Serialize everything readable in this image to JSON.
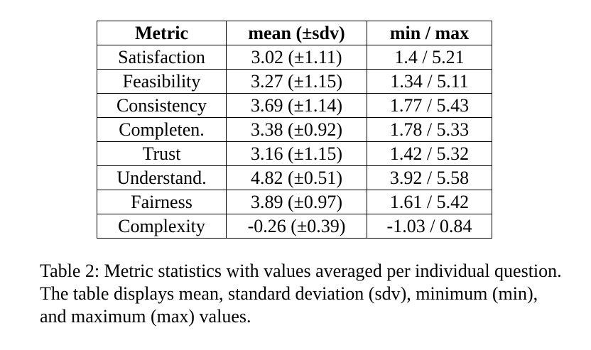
{
  "table": {
    "headers": [
      "Metric",
      "mean (±sdv)",
      "min / max"
    ],
    "rows": [
      [
        "Satisfaction",
        "3.02 (±1.11)",
        "1.4 / 5.21"
      ],
      [
        "Feasibility",
        "3.27 (±1.15)",
        "1.34 / 5.11"
      ],
      [
        "Consistency",
        "3.69 (±1.14)",
        "1.77 / 5.43"
      ],
      [
        "Completen.",
        "3.38 (±0.92)",
        "1.78 / 5.33"
      ],
      [
        "Trust",
        "3.16 (±1.15)",
        "1.42 / 5.32"
      ],
      [
        "Understand.",
        "4.82 (±0.51)",
        "3.92 / 5.58"
      ],
      [
        "Fairness",
        "3.89 (±0.97)",
        "1.61 / 5.42"
      ],
      [
        "Complexity",
        "-0.26 (±0.39)",
        "-1.03 / 0.84"
      ]
    ]
  },
  "caption": "Table 2: Metric statistics with values averaged per individual question. The table displays mean, standard deviation (sdv), minimum (min), and maximum (max) values."
}
